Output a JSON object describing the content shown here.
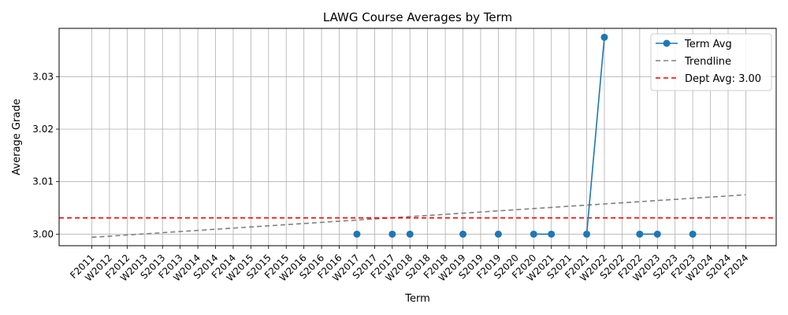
{
  "chart_data": {
    "type": "line",
    "title": "LAWG Course Averages by Term",
    "xlabel": "Term",
    "ylabel": "Average Grade",
    "categories": [
      "F2011",
      "W2012",
      "F2012",
      "W2013",
      "S2013",
      "F2013",
      "W2014",
      "S2014",
      "F2014",
      "W2015",
      "S2015",
      "F2015",
      "W2016",
      "S2016",
      "F2016",
      "W2017",
      "S2017",
      "F2017",
      "W2018",
      "S2018",
      "F2018",
      "W2019",
      "S2019",
      "F2019",
      "S2020",
      "F2020",
      "W2021",
      "S2021",
      "F2021",
      "W2022",
      "S2022",
      "F2022",
      "W2023",
      "S2023",
      "F2023",
      "W2024",
      "S2024",
      "F2024"
    ],
    "ylim": [
      2.9978,
      3.0392
    ],
    "yticks": [
      3.0,
      3.01,
      3.02,
      3.03
    ],
    "ytick_labels": [
      "3.00",
      "3.01",
      "3.02",
      "3.03"
    ],
    "grid": true,
    "legend_position": "top-right",
    "series": [
      {
        "name": "Term Avg",
        "kind": "line-markers",
        "color": "#1f77b4",
        "points": [
          {
            "x": "W2017",
            "y": 3.0
          },
          {
            "x": "F2017",
            "y": 3.0
          },
          {
            "x": "W2018",
            "y": 3.0
          },
          {
            "x": "W2019",
            "y": 3.0
          },
          {
            "x": "F2019",
            "y": 3.0
          },
          {
            "x": "F2020",
            "y": 3.0
          },
          {
            "x": "W2021",
            "y": 3.0
          },
          {
            "x": "F2021",
            "y": 3.0
          },
          {
            "x": "W2022",
            "y": 3.0375
          },
          {
            "x": "F2022",
            "y": 3.0
          },
          {
            "x": "W2023",
            "y": 3.0
          },
          {
            "x": "F2023",
            "y": 3.0
          }
        ],
        "line_segments": [
          [
            "F2020",
            "W2021"
          ],
          [
            "F2021",
            "W2022"
          ],
          [
            "F2022",
            "W2023"
          ]
        ]
      },
      {
        "name": "Trendline",
        "kind": "dashed-line",
        "color": "#808080",
        "points": [
          {
            "x": "F2011",
            "y": 2.9994
          },
          {
            "x": "F2024",
            "y": 3.0075
          }
        ]
      },
      {
        "name": "Dept Avg: 3.00",
        "kind": "horizontal-dashed",
        "color": "#ff0000",
        "y": 3.0031
      }
    ]
  }
}
